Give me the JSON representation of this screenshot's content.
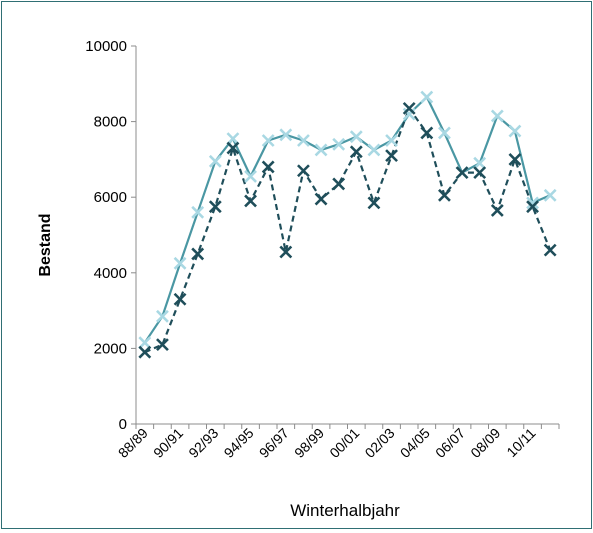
{
  "chart_data": {
    "type": "line",
    "xlabel": "Winterhalbjahr",
    "ylabel": "Bestand",
    "ylim": [
      0,
      10000
    ],
    "yticks": [
      "0",
      "2000",
      "4000",
      "6000",
      "8000",
      "10000"
    ],
    "x": [
      "88/89",
      "89/90",
      "90/91",
      "91/92",
      "92/93",
      "93/94",
      "94/95",
      "95/96",
      "96/97",
      "97/98",
      "98/99",
      "99/00",
      "00/01",
      "01/02",
      "02/03",
      "03/04",
      "04/05",
      "05/06",
      "06/07",
      "07/08",
      "08/09",
      "09/10",
      "10/11",
      "11/12"
    ],
    "xtick_labels": [
      "88/89",
      "",
      "90/91",
      "",
      "92/93",
      "",
      "94/95",
      "",
      "96/97",
      "",
      "98/99",
      "",
      "00/01",
      "",
      "02/03",
      "",
      "04/05",
      "",
      "06/07",
      "",
      "08/09",
      "",
      "10/11",
      ""
    ],
    "grid": false,
    "legend": "none",
    "series": [
      {
        "style": "solid",
        "color": "#4a97a3",
        "marker_color": "#a9d8e3",
        "values": [
          2150,
          2850,
          4250,
          5600,
          6950,
          7550,
          6550,
          7500,
          7650,
          7500,
          7250,
          7400,
          7600,
          7250,
          7500,
          8200,
          8650,
          7700,
          6650,
          6900,
          8150,
          7750,
          5850,
          6050
        ]
      },
      {
        "style": "dashed",
        "color": "#1f4e5a",
        "marker_color": "#1f4e5a",
        "values": [
          1900,
          2100,
          3300,
          4500,
          5750,
          7300,
          5900,
          6800,
          4550,
          6700,
          5950,
          6350,
          7200,
          5850,
          7100,
          8350,
          7700,
          6050,
          6650,
          6650,
          5650,
          7000,
          5750,
          4600
        ]
      }
    ]
  }
}
